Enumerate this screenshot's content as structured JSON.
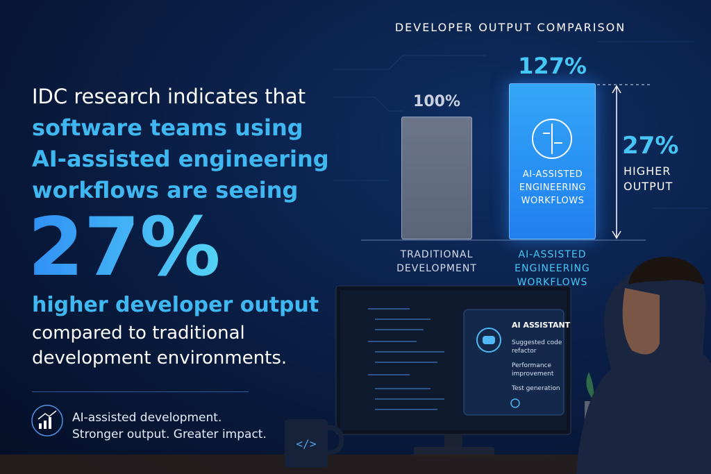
{
  "text": {
    "intro": "IDC research indicates that",
    "highlight": "software teams using AI-assisted engineering workflows are seeing",
    "stat": "27%",
    "stat_caption": "higher developer output",
    "comparison": "compared to traditional development environments.",
    "tagline": [
      "AI-assisted development.",
      "Stronger output. Greater impact."
    ]
  },
  "screen": {
    "title": "AI ASSISTANT",
    "items": [
      "Suggested code refactor",
      "Performance improvement",
      "Test generation"
    ]
  },
  "chart_data": {
    "type": "bar",
    "title": "DEVELOPER OUTPUT COMPARISON",
    "categories": [
      "TRADITIONAL DEVELOPMENT",
      "AI-ASSISTED ENGINEERING WORKFLOWS"
    ],
    "values": [
      100,
      127
    ],
    "value_labels": [
      "100%",
      "127%"
    ],
    "colors": [
      "#5b6579",
      "#1f7ff0"
    ],
    "label_colors": [
      "#c9d1e0",
      "#45c8f5"
    ],
    "bar_text": "AI-ASSISTED ENGINEERING WORKFLOWS",
    "annotation": {
      "value": "27%",
      "text": "HIGHER OUTPUT"
    }
  }
}
